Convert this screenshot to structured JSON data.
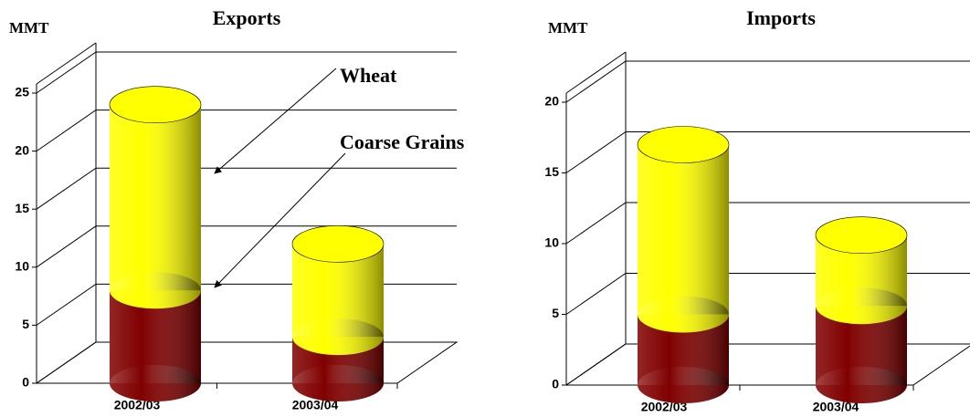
{
  "chart_data": [
    {
      "type": "bar",
      "stacked": true,
      "title": "Exports",
      "y_label": "MMT",
      "categories": [
        "2002/03",
        "2003/04"
      ],
      "series": [
        {
          "name": "Coarse Grains",
          "color": "#800000",
          "values": [
            8,
            4
          ]
        },
        {
          "name": "Wheat",
          "color": "#ffff00",
          "values": [
            16,
            8
          ]
        }
      ],
      "ylim": [
        0,
        25
      ],
      "yticks": [
        0,
        5,
        10,
        15,
        20,
        25
      ],
      "grid": true,
      "legend": true
    },
    {
      "type": "bar",
      "stacked": true,
      "title": "Imports",
      "y_label": "MMT",
      "categories": [
        "2002/03",
        "2003/04"
      ],
      "series": [
        {
          "name": "Coarse Grains",
          "color": "#800000",
          "values": [
            5,
            5.6
          ]
        },
        {
          "name": "Wheat",
          "color": "#ffff00",
          "values": [
            12,
            5
          ]
        }
      ],
      "ylim": [
        0,
        20
      ],
      "yticks": [
        0,
        5,
        10,
        15,
        20
      ],
      "grid": true,
      "legend": false
    }
  ]
}
